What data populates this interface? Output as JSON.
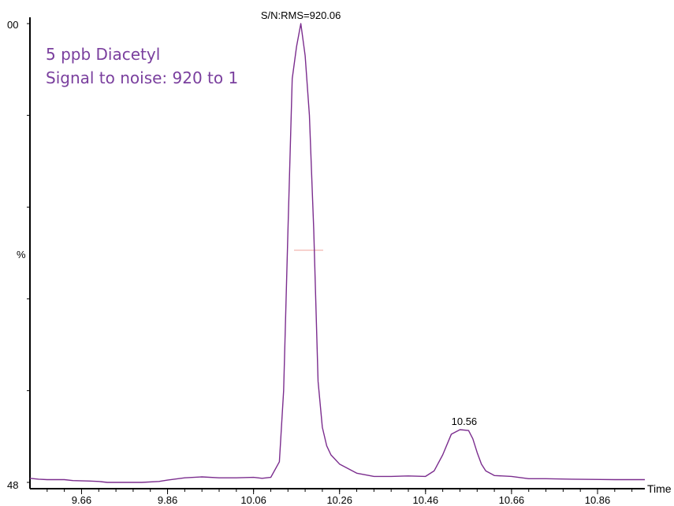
{
  "chart_data": {
    "type": "line",
    "annotation_lines": [
      "5 ppb Diacetyl",
      "Signal to noise:  920 to 1"
    ],
    "ylabel": "%",
    "xlabel": "Time",
    "y_tick_labels": {
      "top": "00",
      "bottom": "48"
    },
    "xlim": [
      9.54,
      10.97
    ],
    "ylim": [
      0,
      100
    ],
    "x_ticks": [
      9.66,
      9.86,
      10.06,
      10.26,
      10.46,
      10.66,
      10.86
    ],
    "x_tick_labels": [
      "9.66",
      "9.86",
      "10.06",
      "10.26",
      "10.46",
      "10.66",
      "10.86"
    ],
    "peak_labels": [
      {
        "x": 10.17,
        "y": 100,
        "text": "S/N:RMS=920.06"
      },
      {
        "x": 10.55,
        "y": 11.5,
        "text": "10.56"
      }
    ],
    "series": [
      {
        "color": "#7b2d8e",
        "x": [
          9.54,
          9.56,
          9.58,
          9.62,
          9.64,
          9.68,
          9.7,
          9.72,
          9.76,
          9.8,
          9.84,
          9.86,
          9.9,
          9.94,
          9.98,
          10.02,
          10.06,
          10.08,
          10.1,
          10.12,
          10.13,
          10.14,
          10.15,
          10.16,
          10.17,
          10.18,
          10.19,
          10.2,
          10.21,
          10.22,
          10.23,
          10.24,
          10.25,
          10.26,
          10.28,
          10.3,
          10.34,
          10.38,
          10.42,
          10.46,
          10.48,
          10.5,
          10.52,
          10.54,
          10.56,
          10.57,
          10.58,
          10.59,
          10.6,
          10.62,
          10.66,
          10.7,
          10.74,
          10.8,
          10.9,
          10.97
        ],
        "y": [
          0.9,
          0.7,
          0.6,
          0.6,
          0.4,
          0.3,
          0.2,
          0.0,
          0.0,
          0.0,
          0.2,
          0.5,
          1.0,
          1.2,
          1.0,
          1.0,
          1.1,
          0.9,
          1.1,
          4.5,
          20,
          55,
          88,
          95,
          100,
          93,
          80,
          55,
          22,
          12,
          8,
          6,
          5,
          4,
          3,
          2,
          1.3,
          1.3,
          1.4,
          1.3,
          2.5,
          6,
          10.5,
          11.5,
          11.3,
          9.5,
          6.5,
          4,
          2.5,
          1.5,
          1.3,
          0.8,
          0.8,
          0.7,
          0.6,
          0.6
        ]
      }
    ]
  }
}
